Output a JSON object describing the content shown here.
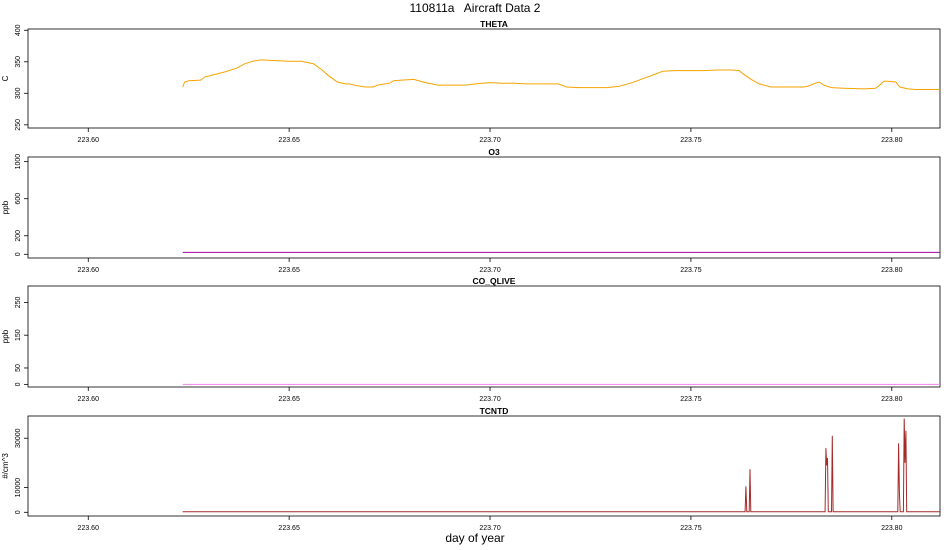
{
  "title": "110811a   Aircraft Data 2",
  "xlabel": "day of year",
  "colors": {
    "THETA": "#f5a300",
    "O3": "#a000a0",
    "CO_QLIVE": "#ee82ee",
    "TCNTD": "#a52a2a"
  },
  "chart_data": [
    {
      "type": "line",
      "title": "THETA",
      "ylabel": "C",
      "xlim": [
        223.585,
        223.812
      ],
      "ylim": [
        245,
        402
      ],
      "xticks": [
        "223.60",
        "223.65",
        "223.70",
        "223.75",
        "223.80"
      ],
      "xtick_values": [
        223.6,
        223.65,
        223.7,
        223.75,
        223.8
      ],
      "yticks": [
        "250",
        "300",
        "350",
        "400"
      ],
      "ytick_values": [
        250,
        300,
        350,
        400
      ],
      "series": [
        {
          "color": "#f5a300",
          "x": [
            223.6235,
            223.624,
            223.625,
            223.628,
            223.629,
            223.631,
            223.634,
            223.637,
            223.639,
            223.641,
            223.643,
            223.646,
            223.65,
            223.653,
            223.656,
            223.658,
            223.66,
            223.662,
            223.664,
            223.665,
            223.667,
            223.669,
            223.671,
            223.672,
            223.675,
            223.676,
            223.678,
            223.681,
            223.684,
            223.687,
            223.69,
            223.692,
            223.694,
            223.695,
            223.698,
            223.7,
            223.703,
            223.706,
            223.709,
            223.712,
            223.717,
            223.719,
            223.722,
            223.726,
            223.729,
            223.732,
            223.735,
            223.738,
            223.741,
            223.743,
            223.746,
            223.749,
            223.753,
            223.757,
            223.76,
            223.762,
            223.763,
            223.765,
            223.767,
            223.77,
            223.775,
            223.778,
            223.779,
            223.781,
            223.782,
            223.783,
            223.785,
            223.788,
            223.793,
            223.796,
            223.797,
            223.798,
            223.799,
            223.801,
            223.802,
            223.804,
            223.806,
            223.812
          ],
          "y": [
            310,
            318,
            320,
            321,
            326,
            329,
            334,
            340,
            347,
            351,
            353,
            352,
            351,
            351,
            347,
            338,
            327,
            318,
            315,
            315,
            312,
            310,
            310,
            313,
            316,
            320,
            321,
            322,
            317,
            313,
            313,
            313,
            313,
            314,
            316,
            317,
            316,
            316,
            315,
            315,
            315,
            310,
            309,
            309,
            309,
            311,
            316,
            323,
            330,
            335,
            336,
            336,
            336,
            337,
            337,
            336,
            331,
            322,
            315,
            310,
            310,
            310,
            311,
            316,
            318,
            313,
            309,
            308,
            307,
            308,
            313,
            319,
            319,
            318,
            310,
            307,
            306,
            306
          ]
        }
      ]
    },
    {
      "type": "line",
      "title": "O3",
      "ylabel": "ppb",
      "xlim": [
        223.585,
        223.812
      ],
      "ylim": [
        -40,
        1050
      ],
      "xticks": [
        "223.60",
        "223.65",
        "223.70",
        "223.75",
        "223.80"
      ],
      "xtick_values": [
        223.6,
        223.65,
        223.7,
        223.75,
        223.8
      ],
      "yticks": [
        "0",
        "200",
        "600",
        "1000"
      ],
      "ytick_values": [
        0,
        200,
        600,
        1000
      ],
      "series": [
        {
          "color": "#a000a0",
          "x": [
            223.6235,
            223.812
          ],
          "y": [
            20,
            20
          ]
        }
      ]
    },
    {
      "type": "line",
      "title": "CO_QLIVE",
      "ylabel": "ppb",
      "xlim": [
        223.585,
        223.812
      ],
      "ylim": [
        -8,
        300
      ],
      "xticks": [
        "223.60",
        "223.65",
        "223.70",
        "223.75",
        "223.80"
      ],
      "xtick_values": [
        223.6,
        223.65,
        223.7,
        223.75,
        223.8
      ],
      "yticks": [
        "0",
        "50",
        "150",
        "250"
      ],
      "ytick_values": [
        0,
        50,
        150,
        250
      ],
      "series": [
        {
          "color": "#ee82ee",
          "x": [
            223.6235,
            223.812
          ],
          "y": [
            0,
            0
          ]
        }
      ]
    },
    {
      "type": "line",
      "title": "TCNTD",
      "ylabel": "#/cm^3",
      "xlim": [
        223.585,
        223.812
      ],
      "ylim": [
        -1500,
        39000
      ],
      "xticks": [
        "223.60",
        "223.65",
        "223.70",
        "223.75",
        "223.80"
      ],
      "xtick_values": [
        223.6,
        223.65,
        223.7,
        223.75,
        223.8
      ],
      "yticks": [
        "0",
        "10000",
        "30000"
      ],
      "ytick_values": [
        0,
        10000,
        30000
      ],
      "series": [
        {
          "color": "#a52a2a",
          "x": [
            223.6235,
            223.7635,
            223.7637,
            223.7639,
            223.7645,
            223.7647,
            223.7649,
            223.7834,
            223.7836,
            223.7838,
            223.784,
            223.7842,
            223.7844,
            223.785,
            223.7852,
            223.7854,
            223.8015,
            223.8017,
            223.8019,
            223.8021,
            223.8023,
            223.8029,
            223.8031,
            223.8033,
            223.8035,
            223.8037,
            223.812
          ],
          "y": [
            200,
            200,
            10500,
            200,
            200,
            17500,
            200,
            200,
            26000,
            19000,
            22000,
            200,
            200,
            200,
            31000,
            200,
            200,
            28000,
            8000,
            200,
            200,
            200,
            38000,
            20000,
            33000,
            200,
            200
          ]
        }
      ]
    }
  ]
}
